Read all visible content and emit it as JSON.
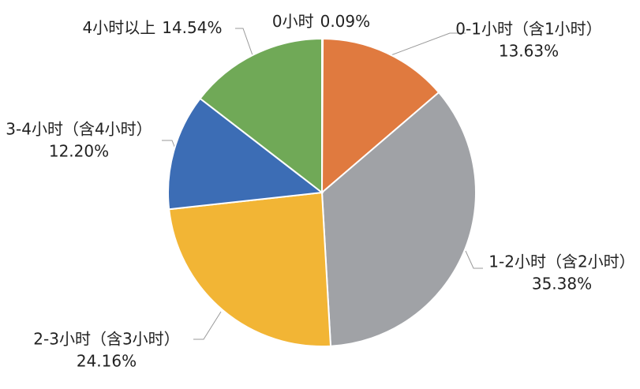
{
  "chart_data": {
    "type": "pie",
    "categories": [
      "0小时",
      "0-1小时（含1小时）",
      "1-2小时（含2小时）",
      "2-3小时（含3小时）",
      "3-4小时（含4小时）",
      "4小时以上"
    ],
    "values": [
      0.09,
      13.63,
      35.38,
      24.16,
      12.2,
      14.54
    ],
    "value_labels": [
      "0.09%",
      "13.63%",
      "35.38%",
      "24.16%",
      "12.20%",
      "14.54%"
    ],
    "colors": [
      "#5b9bd5",
      "#e07a3f",
      "#a0a2a6",
      "#f2b535",
      "#3c6db5",
      "#70a957"
    ]
  }
}
